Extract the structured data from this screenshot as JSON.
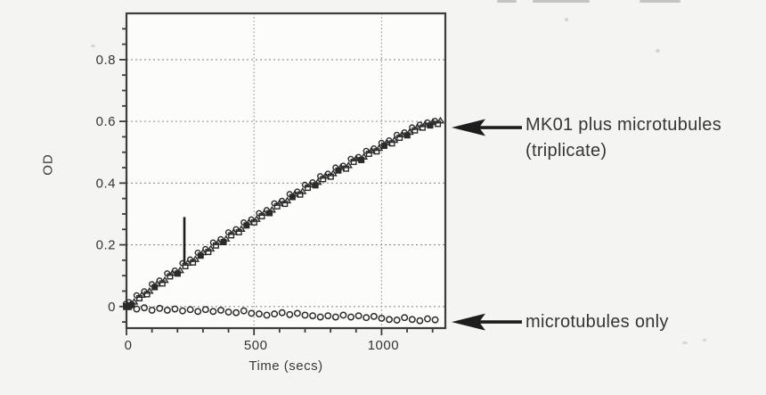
{
  "figure": {
    "background": "#f4f4f2",
    "plot_background": "#fcfcfb",
    "ink": "#2b2b2b",
    "grid_color": "#8f8f8f",
    "text_color": "#353535"
  },
  "labels": {
    "mk01_line1": "MK01 plus microtubules",
    "mk01_line2": "(triplicate)",
    "microtubules_only": "microtubules only"
  },
  "chart_data": {
    "type": "scatter",
    "title": "",
    "xlabel": "Time (secs)",
    "ylabel": "OD",
    "xlim": [
      0,
      1250
    ],
    "ylim": [
      -0.07,
      0.95
    ],
    "x_major_ticks": [
      0,
      500,
      1000
    ],
    "x_tick_labels": [
      "0",
      "500",
      "1000"
    ],
    "x_minor_tick_step": 100,
    "y_major_ticks": [
      0,
      0.2,
      0.4,
      0.6,
      0.8
    ],
    "y_tick_labels": [
      "0",
      "0.2",
      "0.4",
      "0.6",
      "0.8"
    ],
    "y_minor_tick_step": 0.05,
    "grid": {
      "horizontal_at": [
        0,
        0.2,
        0.4,
        0.6,
        0.8
      ],
      "vertical_at": [
        500,
        1000
      ],
      "style": "dashed"
    },
    "legend_position": "right-side arrow callouts",
    "series": [
      {
        "name": "MK01 plus microtubules (triplicate)",
        "marker": "overlapping open/filled squares, triangles and circles (3 replicates)",
        "x": [
          8,
          20,
          50,
          80,
          110,
          140,
          170,
          200,
          230,
          260,
          290,
          320,
          350,
          380,
          410,
          440,
          470,
          500,
          530,
          560,
          590,
          620,
          650,
          680,
          710,
          740,
          770,
          800,
          830,
          860,
          890,
          920,
          950,
          980,
          1010,
          1040,
          1070,
          1100,
          1130,
          1160,
          1190,
          1220
        ],
        "y": [
          0.004,
          0.01,
          0.032,
          0.045,
          0.068,
          0.08,
          0.103,
          0.112,
          0.136,
          0.148,
          0.17,
          0.182,
          0.203,
          0.214,
          0.236,
          0.246,
          0.268,
          0.278,
          0.298,
          0.308,
          0.33,
          0.338,
          0.36,
          0.368,
          0.39,
          0.398,
          0.418,
          0.426,
          0.446,
          0.452,
          0.474,
          0.48,
          0.5,
          0.508,
          0.526,
          0.534,
          0.552,
          0.56,
          0.576,
          0.585,
          0.592,
          0.597
        ]
      },
      {
        "name": "microtubules only",
        "marker": "open circles",
        "x": [
          10,
          40,
          70,
          100,
          130,
          160,
          190,
          220,
          250,
          280,
          310,
          340,
          370,
          400,
          430,
          460,
          490,
          520,
          550,
          580,
          610,
          640,
          670,
          700,
          730,
          760,
          790,
          820,
          850,
          880,
          910,
          940,
          970,
          1000,
          1030,
          1060,
          1090,
          1120,
          1150,
          1180,
          1210
        ],
        "y": [
          0.0,
          -0.008,
          -0.004,
          -0.012,
          -0.006,
          -0.012,
          -0.008,
          -0.014,
          -0.01,
          -0.016,
          -0.01,
          -0.016,
          -0.012,
          -0.018,
          -0.02,
          -0.014,
          -0.022,
          -0.024,
          -0.028,
          -0.024,
          -0.02,
          -0.026,
          -0.022,
          -0.028,
          -0.03,
          -0.034,
          -0.03,
          -0.034,
          -0.028,
          -0.034,
          -0.03,
          -0.036,
          -0.032,
          -0.038,
          -0.042,
          -0.044,
          -0.036,
          -0.042,
          -0.046,
          -0.04,
          -0.043
        ]
      }
    ],
    "annotations": [
      {
        "type": "vertical-bar",
        "x": 227,
        "y_from": 0.14,
        "y_to": 0.29
      },
      {
        "type": "arrow-label",
        "text": "MK01 plus microtubules (triplicate)",
        "target_x": 1230,
        "target_y": 0.58
      },
      {
        "type": "arrow-label",
        "text": "microtubules only",
        "target_x": 1230,
        "target_y": -0.05
      }
    ]
  }
}
